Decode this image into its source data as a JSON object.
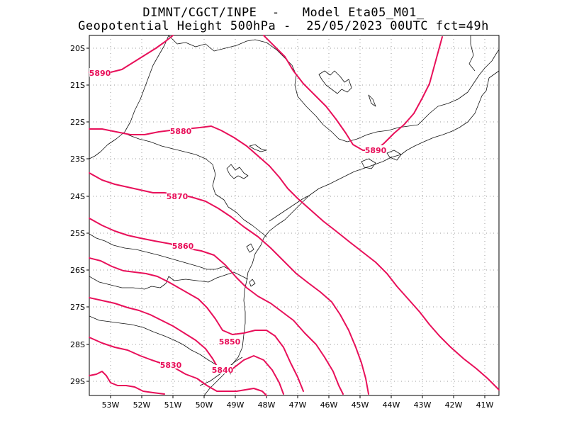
{
  "header": {
    "line1": "DIMNT/CGCT/INPE  -   Model Eta05_M01_",
    "line2": "Geopotential Height 500hPa -  25/05/2023 00UTC fct=49h"
  },
  "map": {
    "lat_labels": [
      "20S",
      "21S",
      "22S",
      "23S",
      "24S",
      "25S",
      "26S",
      "27S",
      "28S",
      "29S"
    ],
    "lon_labels": [
      "53W",
      "52W",
      "51W",
      "50W",
      "49W",
      "48W",
      "47W",
      "46W",
      "45W",
      "44W",
      "43W",
      "42W",
      "41W"
    ],
    "contour_color": "#e8105a",
    "contour_labels": [
      "5890",
      "5890",
      "5880",
      "5870",
      "5860",
      "5850",
      "5840",
      "5830"
    ]
  }
}
